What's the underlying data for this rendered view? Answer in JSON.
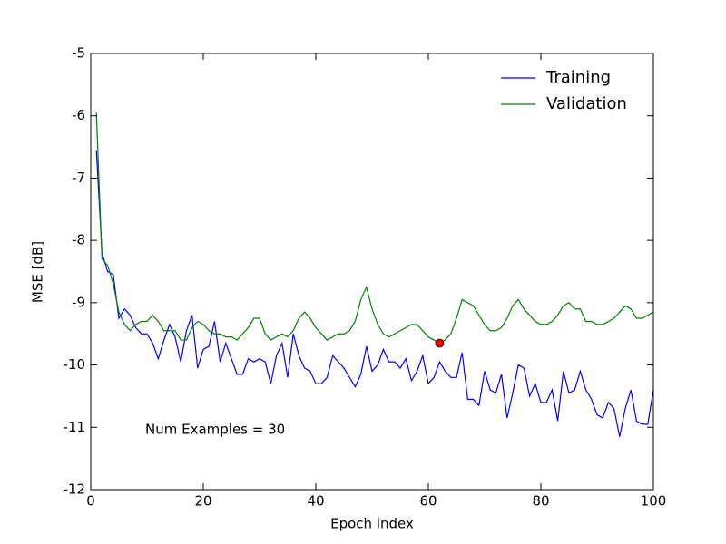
{
  "chart_data": {
    "type": "line",
    "xlabel": "Epoch index",
    "ylabel": "MSE [dB]",
    "annotation": "Num Examples = 30",
    "x": [
      1,
      2,
      3,
      4,
      5,
      6,
      7,
      8,
      9,
      10,
      11,
      12,
      13,
      14,
      15,
      16,
      17,
      18,
      19,
      20,
      21,
      22,
      23,
      24,
      25,
      26,
      27,
      28,
      29,
      30,
      31,
      32,
      33,
      34,
      35,
      36,
      37,
      38,
      39,
      40,
      41,
      42,
      43,
      44,
      45,
      46,
      47,
      48,
      49,
      50,
      51,
      52,
      53,
      54,
      55,
      56,
      57,
      58,
      59,
      60,
      61,
      62,
      63,
      64,
      65,
      66,
      67,
      68,
      69,
      70,
      71,
      72,
      73,
      74,
      75,
      76,
      77,
      78,
      79,
      80,
      81,
      82,
      83,
      84,
      85,
      86,
      87,
      88,
      89,
      90,
      91,
      92,
      93,
      94,
      95,
      96,
      97,
      98,
      99,
      100
    ],
    "series": [
      {
        "name": "Training",
        "color": "#0000ff",
        "values": [
          -6.55,
          -8.2,
          -8.5,
          -8.55,
          -9.25,
          -9.1,
          -9.2,
          -9.4,
          -9.5,
          -9.5,
          -9.65,
          -9.9,
          -9.6,
          -9.35,
          -9.55,
          -9.95,
          -9.45,
          -9.2,
          -10.05,
          -9.75,
          -9.7,
          -9.3,
          -9.95,
          -9.65,
          -9.9,
          -10.15,
          -10.15,
          -9.9,
          -9.95,
          -9.9,
          -9.95,
          -10.3,
          -9.85,
          -9.65,
          -10.2,
          -9.5,
          -9.85,
          -10.05,
          -10.1,
          -10.3,
          -10.3,
          -10.2,
          -9.85,
          -9.95,
          -10.05,
          -10.2,
          -10.35,
          -10.15,
          -9.7,
          -10.1,
          -10.0,
          -9.75,
          -9.95,
          -9.95,
          -10.05,
          -9.9,
          -10.25,
          -10.1,
          -9.85,
          -10.3,
          -10.2,
          -9.95,
          -10.1,
          -10.2,
          -10.2,
          -9.8,
          -10.55,
          -10.55,
          -10.65,
          -10.1,
          -10.4,
          -10.45,
          -10.15,
          -10.85,
          -10.45,
          -10.0,
          -10.05,
          -10.5,
          -10.3,
          -10.6,
          -10.6,
          -10.4,
          -10.9,
          -10.1,
          -10.45,
          -10.4,
          -10.1,
          -10.4,
          -10.55,
          -10.8,
          -10.85,
          -10.6,
          -10.7,
          -11.15,
          -10.7,
          -10.4,
          -10.9,
          -10.95,
          -10.95,
          -10.4
        ]
      },
      {
        "name": "Validation",
        "color": "#008000",
        "values": [
          -5.95,
          -8.3,
          -8.4,
          -8.7,
          -9.15,
          -9.35,
          -9.45,
          -9.35,
          -9.3,
          -9.3,
          -9.2,
          -9.3,
          -9.45,
          -9.45,
          -9.45,
          -9.6,
          -9.6,
          -9.4,
          -9.3,
          -9.35,
          -9.45,
          -9.5,
          -9.5,
          -9.55,
          -9.55,
          -9.6,
          -9.5,
          -9.4,
          -9.25,
          -9.25,
          -9.5,
          -9.6,
          -9.55,
          -9.5,
          -9.55,
          -9.45,
          -9.25,
          -9.15,
          -9.25,
          -9.4,
          -9.5,
          -9.6,
          -9.55,
          -9.5,
          -9.5,
          -9.45,
          -9.3,
          -8.95,
          -8.75,
          -9.1,
          -9.35,
          -9.5,
          -9.55,
          -9.5,
          -9.45,
          -9.4,
          -9.35,
          -9.35,
          -9.45,
          -9.55,
          -9.6,
          -9.65,
          -9.6,
          -9.5,
          -9.25,
          -8.95,
          -9.0,
          -9.05,
          -9.2,
          -9.35,
          -9.45,
          -9.45,
          -9.4,
          -9.25,
          -9.05,
          -8.95,
          -9.1,
          -9.2,
          -9.3,
          -9.35,
          -9.35,
          -9.3,
          -9.2,
          -9.05,
          -9.0,
          -9.1,
          -9.1,
          -9.3,
          -9.3,
          -9.35,
          -9.35,
          -9.3,
          -9.25,
          -9.15,
          -9.05,
          -9.1,
          -9.25,
          -9.25,
          -9.2,
          -9.15
        ]
      }
    ],
    "marker": {
      "x": 62,
      "y": -9.65,
      "color": "#ff0000"
    },
    "xlim": [
      0,
      100
    ],
    "xticks": [
      0,
      20,
      40,
      60,
      80,
      100
    ],
    "ylim": [
      -12,
      -5
    ],
    "yticks": [
      -12,
      -11,
      -10,
      -9,
      -8,
      -7,
      -6,
      -5
    ],
    "legend": "upper right",
    "grid": false
  }
}
